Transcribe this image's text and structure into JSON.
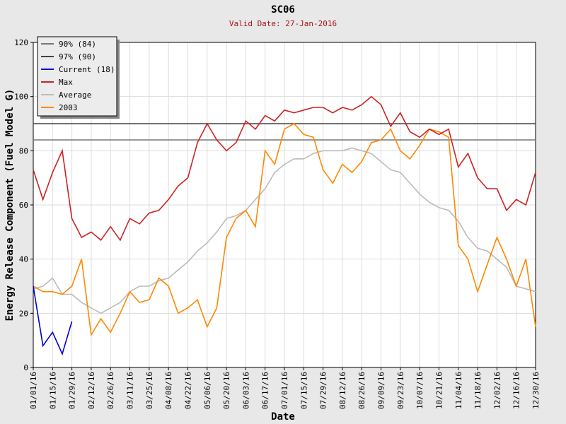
{
  "chart_data": {
    "type": "line",
    "title": "SC06",
    "subtitle": "Valid Date: 27-Jan-2016",
    "xlabel": "Date",
    "ylabel": "Energy Release Component (Fuel Model G)",
    "grid": true,
    "legend": "upper left",
    "xlim": [
      0,
      364
    ],
    "ylim": [
      0,
      120
    ],
    "yticks": [
      0,
      20,
      40,
      60,
      80,
      100,
      120
    ],
    "xticks": [
      {
        "value": 0,
        "label": "01/01/16"
      },
      {
        "value": 14,
        "label": "01/15/16"
      },
      {
        "value": 28,
        "label": "01/29/16"
      },
      {
        "value": 42,
        "label": "02/12/16"
      },
      {
        "value": 56,
        "label": "02/26/16"
      },
      {
        "value": 70,
        "label": "03/11/16"
      },
      {
        "value": 84,
        "label": "03/25/16"
      },
      {
        "value": 98,
        "label": "04/08/16"
      },
      {
        "value": 112,
        "label": "04/22/16"
      },
      {
        "value": 126,
        "label": "05/06/16"
      },
      {
        "value": 140,
        "label": "05/20/16"
      },
      {
        "value": 154,
        "label": "06/03/16"
      },
      {
        "value": 168,
        "label": "06/17/16"
      },
      {
        "value": 182,
        "label": "07/01/16"
      },
      {
        "value": 196,
        "label": "07/15/16"
      },
      {
        "value": 210,
        "label": "07/29/16"
      },
      {
        "value": 224,
        "label": "08/12/16"
      },
      {
        "value": 238,
        "label": "08/26/16"
      },
      {
        "value": 252,
        "label": "09/09/16"
      },
      {
        "value": 266,
        "label": "09/23/16"
      },
      {
        "value": 280,
        "label": "10/07/16"
      },
      {
        "value": 294,
        "label": "10/21/16"
      },
      {
        "value": 308,
        "label": "11/04/16"
      },
      {
        "value": 322,
        "label": "11/18/16"
      },
      {
        "value": 336,
        "label": "12/02/16"
      },
      {
        "value": 350,
        "label": "12/16/16"
      },
      {
        "value": 364,
        "label": "12/30/16"
      }
    ],
    "hlines": [
      {
        "name": "90% (84)",
        "value": 84,
        "color": "#777777"
      },
      {
        "name": "97% (90)",
        "value": 90,
        "color": "#444444"
      }
    ],
    "x": [
      0,
      7,
      14,
      21,
      28,
      35,
      42,
      49,
      56,
      63,
      70,
      77,
      84,
      91,
      98,
      105,
      112,
      119,
      126,
      133,
      140,
      147,
      154,
      161,
      168,
      175,
      182,
      189,
      196,
      203,
      210,
      217,
      224,
      231,
      238,
      245,
      252,
      259,
      266,
      273,
      280,
      287,
      294,
      301,
      308,
      315,
      322,
      329,
      336,
      343,
      350,
      357,
      364
    ],
    "series": [
      {
        "name": "Current (18)",
        "color": "#0000cc",
        "values": [
          30,
          8,
          13,
          5,
          17,
          null,
          null,
          null,
          null,
          null,
          null,
          null,
          null,
          null,
          null,
          null,
          null,
          null,
          null,
          null,
          null,
          null,
          null,
          null,
          null,
          null,
          null,
          null,
          null,
          null,
          null,
          null,
          null,
          null,
          null,
          null,
          null,
          null,
          null,
          null,
          null,
          null,
          null,
          null,
          null,
          null,
          null,
          null,
          null,
          null,
          null,
          null,
          null
        ]
      },
      {
        "name": "Max",
        "color": "#cc2222",
        "values": [
          73,
          62,
          72,
          80,
          55,
          48,
          50,
          47,
          52,
          47,
          55,
          53,
          57,
          58,
          62,
          67,
          70,
          83,
          90,
          84,
          80,
          83,
          91,
          88,
          93,
          91,
          95,
          94,
          95,
          96,
          96,
          94,
          96,
          95,
          97,
          100,
          97,
          89,
          94,
          87,
          85,
          88,
          86,
          88,
          74,
          79,
          70,
          66,
          66,
          58,
          62,
          60,
          72
        ]
      },
      {
        "name": "Average",
        "color": "#bbbbbb",
        "values": [
          29,
          30,
          33,
          27,
          27,
          24,
          22,
          20,
          22,
          24,
          28,
          30,
          30,
          32,
          33,
          36,
          39,
          43,
          46,
          50,
          55,
          56,
          58,
          62,
          66,
          72,
          75,
          77,
          77,
          79,
          80,
          80,
          80,
          81,
          80,
          79,
          76,
          73,
          72,
          68,
          64,
          61,
          59,
          58,
          54,
          48,
          44,
          43,
          40,
          37,
          30,
          29,
          28
        ]
      },
      {
        "name": "2003",
        "color": "#ff8800",
        "values": [
          30,
          28,
          28,
          27,
          30,
          40,
          12,
          18,
          13,
          20,
          28,
          24,
          25,
          33,
          30,
          20,
          22,
          25,
          15,
          22,
          48,
          55,
          58,
          52,
          80,
          75,
          88,
          90,
          86,
          85,
          73,
          68,
          75,
          72,
          76,
          83,
          84,
          88,
          80,
          77,
          82,
          88,
          87,
          85,
          45,
          40,
          28,
          38,
          48,
          40,
          30,
          40,
          15
        ]
      }
    ]
  }
}
